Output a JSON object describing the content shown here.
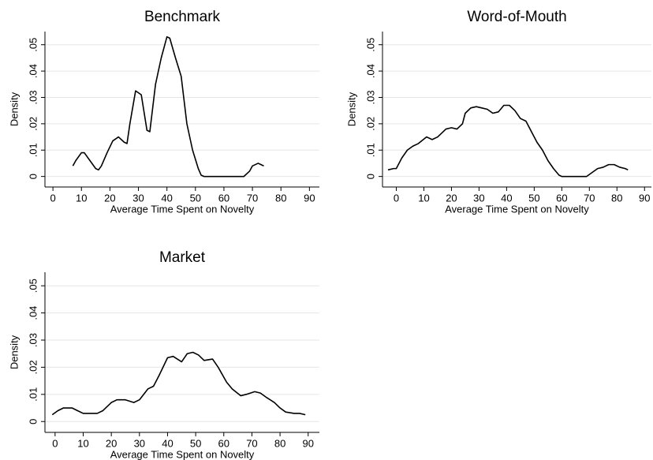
{
  "chart_data": [
    {
      "type": "line",
      "title": "Benchmark",
      "xlabel": "Average Time Spent on Novelty",
      "ylabel": "Density",
      "color": "#000000",
      "x": [
        7,
        8,
        10,
        11,
        13,
        15,
        16,
        17,
        19,
        21,
        23,
        25,
        26,
        27,
        29,
        31,
        33,
        34,
        36,
        38,
        40,
        41,
        43,
        45,
        47,
        49,
        51,
        52,
        53,
        67,
        69,
        70,
        72,
        73,
        74
      ],
      "values": [
        0.004,
        0.006,
        0.009,
        0.009,
        0.006,
        0.003,
        0.0025,
        0.004,
        0.009,
        0.0135,
        0.015,
        0.013,
        0.0125,
        0.02,
        0.0325,
        0.031,
        0.0175,
        0.017,
        0.035,
        0.045,
        0.053,
        0.0525,
        0.045,
        0.038,
        0.02,
        0.01,
        0.003,
        0.0005,
        0,
        0,
        0.002,
        0.004,
        0.005,
        0.0045,
        0.004
      ],
      "xlim": [
        -2.8,
        93.5
      ],
      "ylim": [
        -0.004,
        0.055
      ],
      "xticks": [
        0,
        10,
        20,
        30,
        40,
        50,
        60,
        70,
        80,
        90
      ],
      "yticks": [
        0,
        {
          "value": 0.01,
          "label": ".01"
        },
        {
          "value": 0.02,
          "label": ".02"
        },
        {
          "value": 0.03,
          "label": ".03"
        },
        {
          "value": 0.04,
          "label": ".04"
        },
        {
          "value": 0.05,
          "label": ".05"
        }
      ],
      "grid": true
    },
    {
      "type": "line",
      "title": "Word-of-Mouth",
      "xlabel": "Average Time Spent on Novelty",
      "ylabel": "Density",
      "color": "#000000",
      "x": [
        -3,
        -1,
        0,
        2,
        4,
        6,
        8,
        11,
        13,
        15,
        18,
        20,
        22,
        24,
        25,
        27,
        29,
        31,
        33,
        35,
        37,
        39,
        41,
        43,
        45,
        47,
        49,
        51,
        53,
        55,
        57,
        59,
        60,
        69,
        71,
        73,
        75,
        77,
        79,
        81,
        83,
        84
      ],
      "values": [
        0.0025,
        0.003,
        0.003,
        0.007,
        0.01,
        0.0115,
        0.0125,
        0.015,
        0.014,
        0.015,
        0.018,
        0.0185,
        0.018,
        0.02,
        0.024,
        0.026,
        0.0265,
        0.026,
        0.0255,
        0.024,
        0.0245,
        0.027,
        0.027,
        0.025,
        0.022,
        0.021,
        0.017,
        0.013,
        0.01,
        0.006,
        0.003,
        0.0005,
        0,
        0,
        0.0015,
        0.003,
        0.0035,
        0.0045,
        0.0045,
        0.0035,
        0.003,
        0.0025
      ],
      "xlim": [
        -5,
        92.5
      ],
      "ylim": [
        -0.004,
        0.055
      ],
      "xticks": [
        0,
        10,
        20,
        30,
        40,
        50,
        60,
        70,
        80,
        90
      ],
      "yticks": [
        0,
        {
          "value": 0.01,
          "label": ".01"
        },
        {
          "value": 0.02,
          "label": ".02"
        },
        {
          "value": 0.03,
          "label": ".03"
        },
        {
          "value": 0.04,
          "label": ".04"
        },
        {
          "value": 0.05,
          "label": ".05"
        }
      ],
      "grid": true
    },
    {
      "type": "line",
      "title": "Market",
      "xlabel": "Average Time Spent on Novelty",
      "ylabel": "Density",
      "color": "#000000",
      "x": [
        -1,
        1,
        3,
        6,
        8,
        10,
        13,
        15,
        17,
        20,
        22,
        25,
        28,
        30,
        33,
        35,
        37,
        40,
        42,
        45,
        47,
        49,
        51,
        53,
        56,
        58,
        61,
        63,
        66,
        68,
        71,
        73,
        75,
        78,
        80,
        82,
        85,
        87,
        89
      ],
      "values": [
        0.0025,
        0.004,
        0.005,
        0.005,
        0.004,
        0.003,
        0.003,
        0.003,
        0.004,
        0.007,
        0.008,
        0.008,
        0.007,
        0.008,
        0.012,
        0.013,
        0.017,
        0.0235,
        0.024,
        0.022,
        0.025,
        0.0255,
        0.0245,
        0.0225,
        0.023,
        0.02,
        0.0145,
        0.012,
        0.0095,
        0.01,
        0.011,
        0.0105,
        0.009,
        0.007,
        0.005,
        0.0035,
        0.003,
        0.003,
        0.0025
      ],
      "xlim": [
        -3.6,
        94
      ],
      "ylim": [
        -0.004,
        0.055
      ],
      "xticks": [
        0,
        10,
        20,
        30,
        40,
        50,
        60,
        70,
        80,
        90
      ],
      "yticks": [
        0,
        {
          "value": 0.01,
          "label": ".01"
        },
        {
          "value": 0.02,
          "label": ".02"
        },
        {
          "value": 0.03,
          "label": ".03"
        },
        {
          "value": 0.04,
          "label": ".04"
        },
        {
          "value": 0.05,
          "label": ".05"
        }
      ],
      "grid": true
    }
  ]
}
